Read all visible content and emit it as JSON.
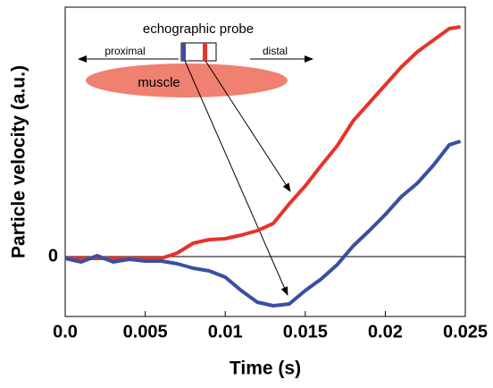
{
  "chart_data": {
    "type": "line",
    "xlabel": "Time (s)",
    "ylabel": "Particle velocity (a.u.)",
    "annotations": {
      "probe": "echographic probe",
      "proximal": "proximal",
      "distal": "distal",
      "muscle": "muscle"
    },
    "x": [
      0,
      0.001,
      0.002,
      0.003,
      0.004,
      0.005,
      0.006,
      0.007,
      0.008,
      0.009,
      0.01,
      0.011,
      0.012,
      0.013,
      0.014,
      0.015,
      0.016,
      0.017,
      0.018,
      0.019,
      0.02,
      0.021,
      0.022,
      0.023,
      0.024,
      0.0247
    ],
    "series": [
      {
        "color": "#e8322a",
        "values": [
          -0.02,
          -0.02,
          -0.02,
          -0.02,
          -0.02,
          -0.02,
          -0.02,
          0.04,
          0.15,
          0.19,
          0.2,
          0.24,
          0.29,
          0.37,
          0.59,
          0.79,
          1.02,
          1.24,
          1.52,
          1.72,
          1.92,
          2.12,
          2.29,
          2.42,
          2.55,
          2.57
        ]
      },
      {
        "color": "#3a4fa0",
        "values": [
          -0.02,
          -0.06,
          0.01,
          -0.06,
          -0.03,
          -0.05,
          -0.05,
          -0.08,
          -0.13,
          -0.16,
          -0.23,
          -0.38,
          -0.51,
          -0.55,
          -0.53,
          -0.38,
          -0.25,
          -0.09,
          0.12,
          0.29,
          0.47,
          0.67,
          0.82,
          1.02,
          1.25,
          1.29
        ]
      }
    ],
    "xlim": [
      0,
      0.025
    ],
    "ylim": [
      -0.67,
      2.79
    ],
    "xticks": [
      {
        "value": 0,
        "label": "0.0"
      },
      0.005,
      0.01,
      0.015,
      0.02,
      0.025
    ],
    "yticks": [
      0
    ]
  }
}
